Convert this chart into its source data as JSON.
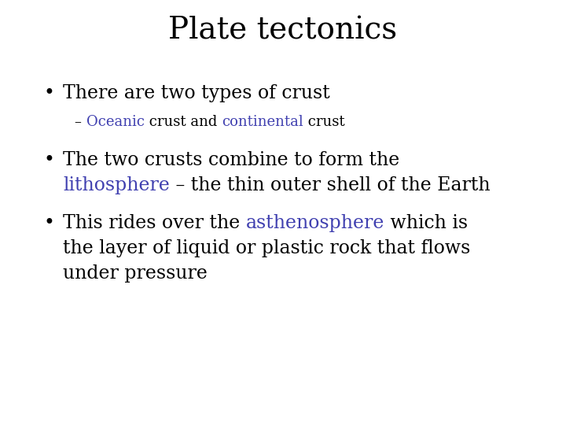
{
  "title": "Plate tectonics",
  "background_color": "#ffffff",
  "title_fontsize": 28,
  "title_color": "#000000",
  "body_fontsize": 17,
  "sub_fontsize": 13,
  "body_color": "#000000",
  "blue_color": "#4040b0",
  "font": "DejaVu Serif",
  "figsize": [
    7.2,
    5.4
  ],
  "dpi": 100
}
